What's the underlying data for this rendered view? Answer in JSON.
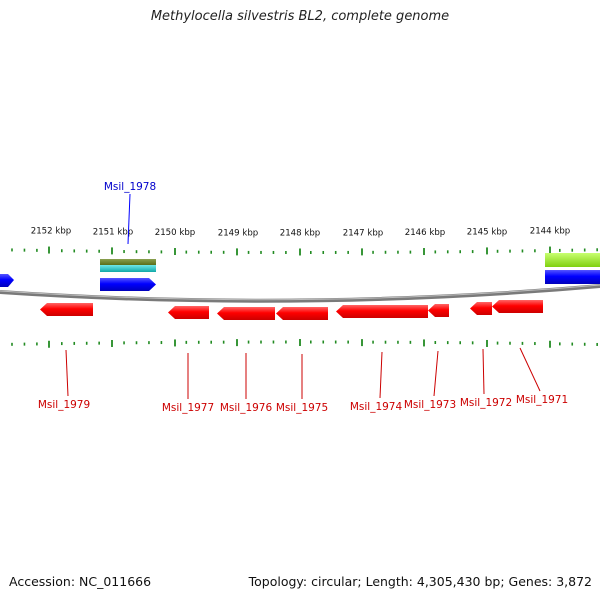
{
  "title": "Methylocella silvestris BL2, complete genome",
  "accession": "Accession: NC_011666",
  "summary": "Topology: circular; Length: 4,305,430 bp; Genes: 3,872",
  "colors": {
    "forward_gene": "#0000ff",
    "reverse_gene": "#ff0000",
    "forward_label": "#0000cc",
    "reverse_label": "#cc0000",
    "tick": "#228b22",
    "backbone": "#777777",
    "feature_olive": "#6b8e23",
    "feature_cyan": "#20c0c0",
    "feature_lime": "#99ee22"
  },
  "ticks": [
    {
      "label": "2152 kbp"
    },
    {
      "label": "2151 kbp"
    },
    {
      "label": "2150 kbp"
    },
    {
      "label": "2149 kbp"
    },
    {
      "label": "2148 kbp"
    },
    {
      "label": "2147 kbp"
    },
    {
      "label": "2146 kbp"
    },
    {
      "label": "2145 kbp"
    },
    {
      "label": "2144 kbp"
    }
  ],
  "genes": [
    {
      "name": "Msil_1978",
      "strand": "+"
    },
    {
      "name": "Msil_1979",
      "strand": "-"
    },
    {
      "name": "Msil_1977",
      "strand": "-"
    },
    {
      "name": "Msil_1976",
      "strand": "-"
    },
    {
      "name": "Msil_1975",
      "strand": "-"
    },
    {
      "name": "Msil_1974",
      "strand": "-"
    },
    {
      "name": "Msil_1973",
      "strand": "-"
    },
    {
      "name": "Msil_1972",
      "strand": "-"
    },
    {
      "name": "Msil_1971",
      "strand": "-"
    }
  ]
}
